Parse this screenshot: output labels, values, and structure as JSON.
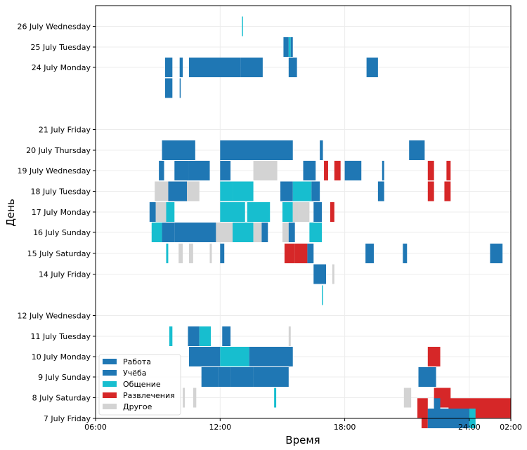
{
  "chart_data": {
    "type": "heatmap",
    "xlabel": "Время",
    "ylabel": "День",
    "x_unit": "hour of day",
    "xlim": [
      6,
      26
    ],
    "x_ticks": [
      {
        "value": 6,
        "label": "06:00"
      },
      {
        "value": 12,
        "label": "12:00"
      },
      {
        "value": 18,
        "label": "18:00"
      },
      {
        "value": 24,
        "label": "24:00"
      },
      {
        "value": 26,
        "label": "02:00"
      }
    ],
    "y_categories": [
      "26 July Wednesday",
      "25 July Tuesday",
      "24 July Monday",
      "21 July Friday",
      "20 July Thursday",
      "19 July Wednesday",
      "18 July Tuesday",
      "17 July Monday",
      "16 July Sunday",
      "15 July Saturday",
      "14 July Friday",
      "12 July Wednesday",
      "11 July Tuesday",
      "10 July Monday",
      "9 July Sunday",
      "8 July Saturday",
      "7 July Friday"
    ],
    "grid": true,
    "legend_position": "bottom-left",
    "categories": [
      {
        "name": "Работа",
        "color": "#1f77b4"
      },
      {
        "name": "Учёба",
        "color": "#1f77b4"
      },
      {
        "name": "Общение",
        "color": "#17becf"
      },
      {
        "name": "Развлечения",
        "color": "#d62728"
      },
      {
        "name": "Другое",
        "color": "#d3d3d3"
      }
    ],
    "rows": [
      {
        "y": 19,
        "segments": [
          [
            13.05,
            13.1,
            "Общение"
          ]
        ]
      },
      {
        "y": 18,
        "segments": [
          [
            15.05,
            15.3,
            "Работа"
          ],
          [
            15.3,
            15.4,
            "Общение"
          ],
          [
            15.4,
            15.5,
            "Работа"
          ]
        ]
      },
      {
        "y": 17,
        "segments": [
          [
            9.35,
            9.7,
            "Работа"
          ],
          [
            10.05,
            10.2,
            "Работа"
          ],
          [
            10.5,
            13.0,
            "Работа"
          ],
          [
            13.0,
            14.05,
            "Работа"
          ],
          [
            15.3,
            15.7,
            "Работа"
          ],
          [
            19.05,
            19.6,
            "Работа"
          ]
        ]
      },
      {
        "y": 16,
        "segments": [
          [
            9.35,
            9.7,
            "Работа"
          ],
          [
            10.05,
            10.1,
            "Работа"
          ]
        ]
      },
      {
        "y": 13,
        "segments": [
          [
            9.2,
            10.8,
            "Работа"
          ],
          [
            12.0,
            15.5,
            "Работа"
          ],
          [
            16.8,
            16.95,
            "Работа"
          ],
          [
            21.1,
            21.85,
            "Работа"
          ]
        ]
      },
      {
        "y": 12,
        "segments": [
          [
            9.05,
            9.3,
            "Работа"
          ],
          [
            9.8,
            10.5,
            "Работа"
          ],
          [
            10.5,
            11.5,
            "Работа"
          ],
          [
            12.0,
            12.5,
            "Работа"
          ],
          [
            13.6,
            14.75,
            "Другое"
          ],
          [
            16.0,
            16.6,
            "Работа"
          ],
          [
            17.0,
            17.2,
            "Развлечения"
          ],
          [
            17.5,
            17.8,
            "Развлечения"
          ],
          [
            18.0,
            18.8,
            "Работа"
          ],
          [
            19.8,
            19.9,
            "Работа"
          ],
          [
            22.0,
            22.3,
            "Развлечения"
          ],
          [
            22.9,
            23.1,
            "Развлечения"
          ]
        ]
      },
      {
        "y": 11,
        "segments": [
          [
            8.85,
            9.5,
            "Другое"
          ],
          [
            9.5,
            10.4,
            "Работа"
          ],
          [
            10.4,
            11.0,
            "Другое"
          ],
          [
            12.0,
            12.6,
            "Общение"
          ],
          [
            12.6,
            13.6,
            "Общение"
          ],
          [
            14.9,
            15.5,
            "Работа"
          ],
          [
            15.5,
            16.4,
            "Общение"
          ],
          [
            16.4,
            16.8,
            "Работа"
          ],
          [
            19.6,
            19.9,
            "Работа"
          ],
          [
            22.0,
            22.3,
            "Развлечения"
          ],
          [
            22.8,
            23.1,
            "Развлечения"
          ]
        ]
      },
      {
        "y": 10,
        "segments": [
          [
            8.6,
            8.9,
            "Работа"
          ],
          [
            8.9,
            9.4,
            "Другое"
          ],
          [
            9.4,
            9.8,
            "Общение"
          ],
          [
            12.0,
            13.2,
            "Общение"
          ],
          [
            13.3,
            14.4,
            "Общение"
          ],
          [
            15.0,
            15.5,
            "Общение"
          ],
          [
            15.5,
            15.8,
            "Другое"
          ],
          [
            15.8,
            16.3,
            "Другое"
          ],
          [
            16.5,
            16.9,
            "Работа"
          ],
          [
            17.3,
            17.5,
            "Развлечения"
          ]
        ]
      },
      {
        "y": 9,
        "segments": [
          [
            8.7,
            9.2,
            "Общение"
          ],
          [
            9.2,
            9.8,
            "Работа"
          ],
          [
            9.8,
            11.8,
            "Работа"
          ],
          [
            11.8,
            12.6,
            "Другое"
          ],
          [
            12.6,
            13.6,
            "Общение"
          ],
          [
            13.6,
            14.0,
            "Другое"
          ],
          [
            14.0,
            14.3,
            "Работа"
          ],
          [
            15.0,
            15.3,
            "Другое"
          ],
          [
            15.3,
            15.6,
            "Работа"
          ],
          [
            16.3,
            16.9,
            "Общение"
          ]
        ]
      },
      {
        "y": 8,
        "segments": [
          [
            9.4,
            9.5,
            "Общение"
          ],
          [
            10.0,
            10.2,
            "Другое"
          ],
          [
            10.5,
            10.7,
            "Другое"
          ],
          [
            11.5,
            11.6,
            "Другое"
          ],
          [
            12.0,
            12.2,
            "Работа"
          ],
          [
            15.1,
            15.6,
            "Развлечения"
          ],
          [
            15.6,
            16.2,
            "Развлечения"
          ],
          [
            16.2,
            16.5,
            "Работа"
          ],
          [
            19.0,
            19.4,
            "Работа"
          ],
          [
            20.8,
            21.0,
            "Работа"
          ],
          [
            25.0,
            25.6,
            "Работа"
          ]
        ]
      },
      {
        "y": 7,
        "segments": [
          [
            16.5,
            17.1,
            "Работа"
          ],
          [
            17.4,
            17.5,
            "Другое"
          ]
        ]
      },
      {
        "y": 6,
        "segments": [
          [
            16.9,
            16.95,
            "Общение"
          ]
        ]
      },
      {
        "y": 4,
        "segments": [
          [
            9.55,
            9.7,
            "Общение"
          ],
          [
            10.45,
            11.0,
            "Работа"
          ],
          [
            11.0,
            11.55,
            "Общение"
          ],
          [
            12.1,
            12.5,
            "Работа"
          ],
          [
            15.3,
            15.4,
            "Другое"
          ]
        ]
      },
      {
        "y": 3,
        "segments": [
          [
            10.5,
            12.0,
            "Работа"
          ],
          [
            12.0,
            13.4,
            "Общение"
          ],
          [
            13.4,
            15.5,
            "Работа"
          ],
          [
            22.0,
            22.6,
            "Развлечения"
          ]
        ]
      },
      {
        "y": 2,
        "segments": [
          [
            11.1,
            11.9,
            "Работа"
          ],
          [
            11.9,
            12.5,
            "Работа"
          ],
          [
            12.5,
            13.6,
            "Работа"
          ],
          [
            13.6,
            15.3,
            "Работа"
          ],
          [
            21.55,
            22.4,
            "Работа"
          ]
        ]
      },
      {
        "y": 1,
        "segments": [
          [
            10.2,
            10.3,
            "Другое"
          ],
          [
            10.7,
            10.85,
            "Другое"
          ],
          [
            14.6,
            14.7,
            "Общение"
          ],
          [
            20.85,
            21.2,
            "Другое"
          ],
          [
            22.3,
            23.1,
            "Развлечения"
          ]
        ]
      },
      {
        "y": 0.5,
        "segments": [
          [
            21.5,
            22.0,
            "Развлечения"
          ],
          [
            22.3,
            22.6,
            "Работа"
          ],
          [
            23.0,
            26.0,
            "Развлечения"
          ]
        ]
      },
      {
        "y": 0,
        "segments": [
          [
            21.7,
            22.0,
            "Развлечения"
          ],
          [
            22.0,
            24.0,
            "Работа"
          ],
          [
            24.0,
            24.3,
            "Общение"
          ]
        ]
      }
    ]
  }
}
